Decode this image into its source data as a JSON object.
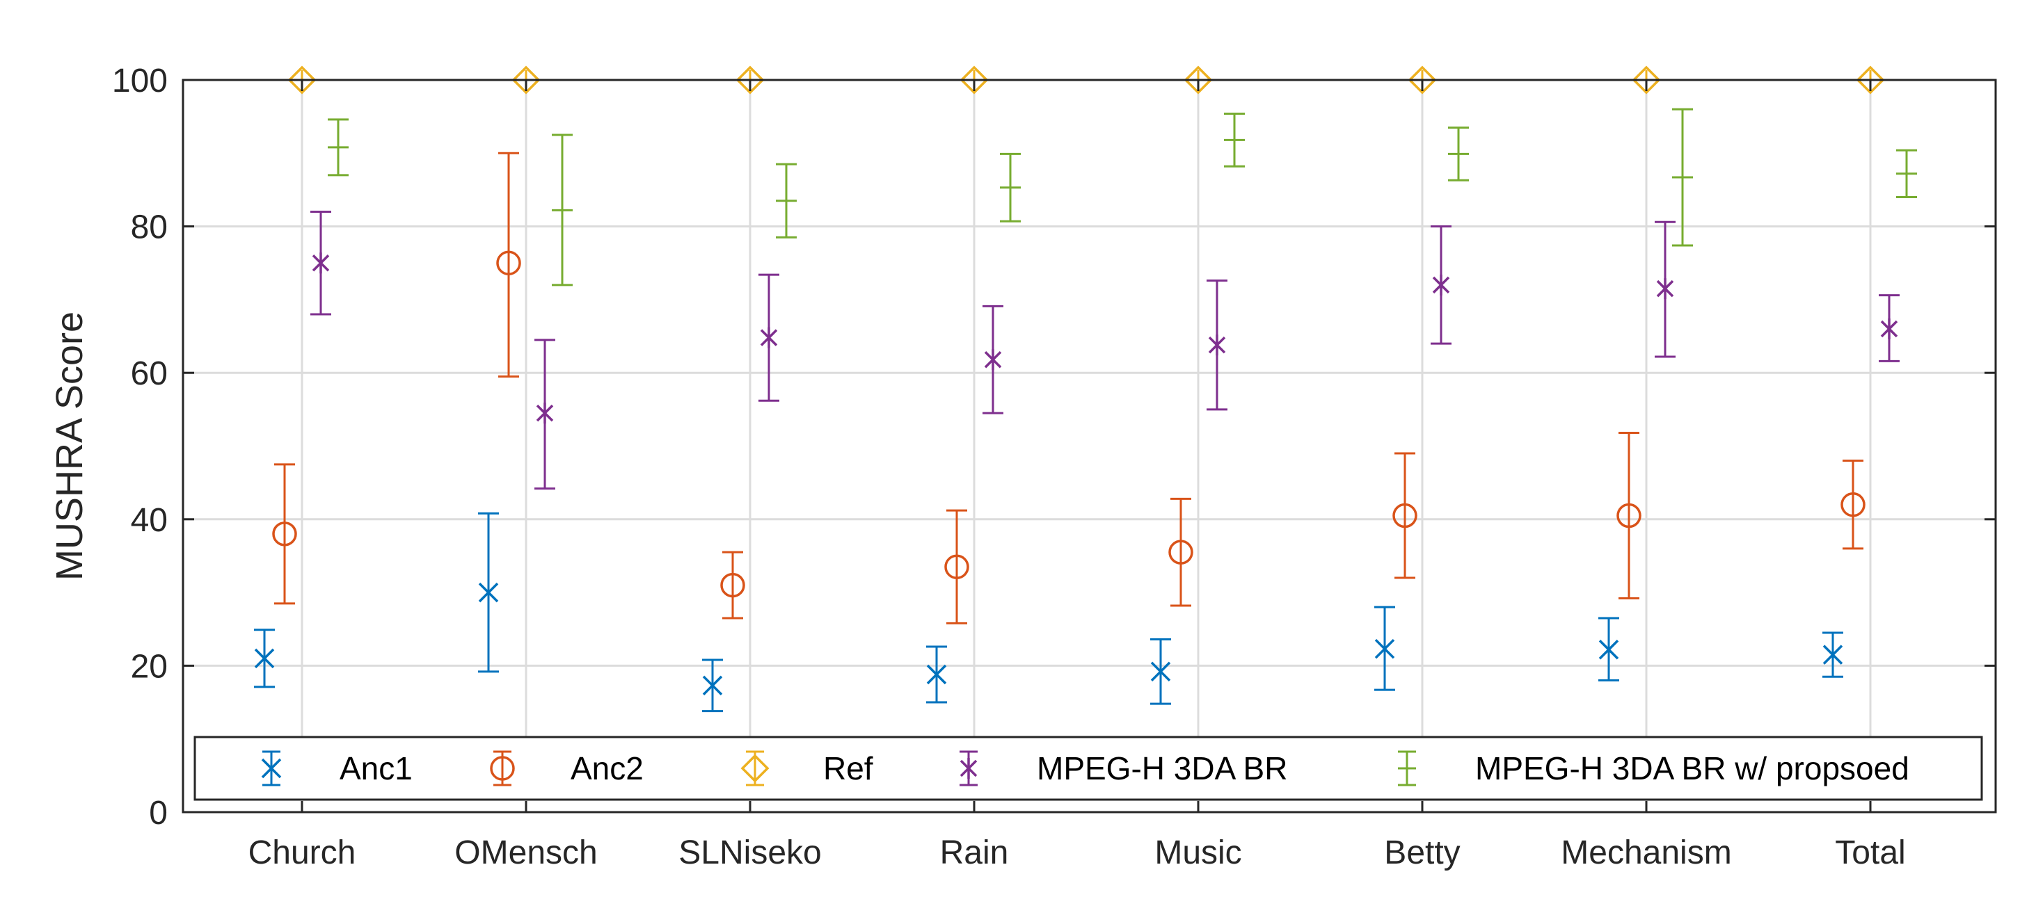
{
  "chart_data": {
    "type": "errorbar",
    "title": "",
    "xlabel": "",
    "ylabel": "MUSHRA Score",
    "ylim": [
      0,
      100
    ],
    "yticks": [
      0,
      20,
      40,
      60,
      80,
      100
    ],
    "grid": true,
    "legend_position": "bottom",
    "categories": [
      "Church",
      "OMensch",
      "SLNiseko",
      "Rain",
      "Music",
      "Betty",
      "Mechanism",
      "Total"
    ],
    "series": [
      {
        "name": "Anc1",
        "color": "#0072BD",
        "marker": "x",
        "values": [
          21,
          30,
          17.3,
          18.8,
          19.2,
          22.3,
          22.2,
          21.5
        ],
        "lower": [
          17.1,
          19.2,
          13.8,
          15,
          14.8,
          16.7,
          18,
          18.5
        ],
        "upper": [
          24.9,
          40.8,
          20.8,
          22.6,
          23.6,
          28,
          26.5,
          24.5
        ]
      },
      {
        "name": "Anc2",
        "color": "#D95319",
        "marker": "circle",
        "values": [
          38,
          75,
          31,
          33.5,
          35.5,
          40.5,
          40.5,
          42
        ],
        "lower": [
          28.5,
          59.5,
          26.5,
          25.8,
          28.2,
          32,
          29.2,
          36
        ],
        "upper": [
          47.5,
          90,
          35.5,
          41.2,
          42.8,
          49,
          51.8,
          48
        ]
      },
      {
        "name": "Ref",
        "color": "#EDB120",
        "marker": "diamond",
        "values": [
          100,
          100,
          100,
          100,
          100,
          100,
          100,
          100
        ],
        "lower": [
          100,
          100,
          100,
          100,
          100,
          100,
          100,
          100
        ],
        "upper": [
          100,
          100,
          100,
          100,
          100,
          100,
          100,
          100
        ]
      },
      {
        "name": "MPEG-H 3DA BR",
        "color": "#7E2F8E",
        "marker": "asterisk",
        "values": [
          75,
          54.5,
          64.8,
          61.8,
          63.8,
          72,
          71.5,
          66
        ],
        "lower": [
          68,
          44.2,
          56.2,
          54.5,
          55,
          64,
          62.2,
          61.6
        ],
        "upper": [
          82,
          64.5,
          73.4,
          69.1,
          72.6,
          80,
          80.6,
          70.6
        ]
      },
      {
        "name": "MPEG-H 3DA BR w/ propsoed",
        "color": "#77AC30",
        "marker": "none",
        "values": [
          90.8,
          82.2,
          83.5,
          85.3,
          91.8,
          89.9,
          86.7,
          87.2
        ],
        "lower": [
          87,
          72,
          78.5,
          80.7,
          88.2,
          86.3,
          77.4,
          84
        ],
        "upper": [
          94.6,
          92.5,
          88.5,
          89.9,
          95.4,
          93.5,
          96,
          90.4
        ]
      }
    ]
  }
}
